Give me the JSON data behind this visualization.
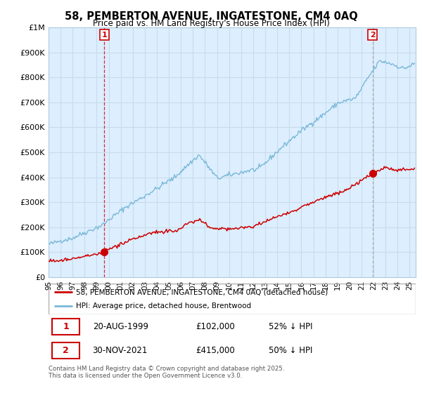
{
  "title": "58, PEMBERTON AVENUE, INGATESTONE, CM4 0AQ",
  "subtitle": "Price paid vs. HM Land Registry's House Price Index (HPI)",
  "footer": "Contains HM Land Registry data © Crown copyright and database right 2025.\nThis data is licensed under the Open Government Licence v3.0.",
  "legend_entry1": "58, PEMBERTON AVENUE, INGATESTONE, CM4 0AQ (detached house)",
  "legend_entry2": "HPI: Average price, detached house, Brentwood",
  "sale1_date": "20-AUG-1999",
  "sale1_price": "£102,000",
  "sale1_hpi": "52% ↓ HPI",
  "sale2_date": "30-NOV-2021",
  "sale2_price": "£415,000",
  "sale2_hpi": "50% ↓ HPI",
  "hpi_color": "#7ab8d8",
  "price_color": "#cc0000",
  "marker_color": "#cc0000",
  "sale2_vline_color": "#aaaaaa",
  "chart_bg": "#ddeeff",
  "ylim": [
    0,
    1000000
  ],
  "yticks": [
    0,
    100000,
    200000,
    300000,
    400000,
    500000,
    600000,
    700000,
    800000,
    900000,
    1000000
  ],
  "ytick_labels": [
    "£0",
    "£100K",
    "£200K",
    "£300K",
    "£400K",
    "£500K",
    "£600K",
    "£700K",
    "£800K",
    "£900K",
    "£1M"
  ],
  "xlim_start": 1995.0,
  "xlim_end": 2025.5,
  "grid_color": "#c8dcea",
  "sale1_x": 1999.63,
  "sale1_y": 102000,
  "sale2_x": 2021.92,
  "sale2_y": 415000
}
